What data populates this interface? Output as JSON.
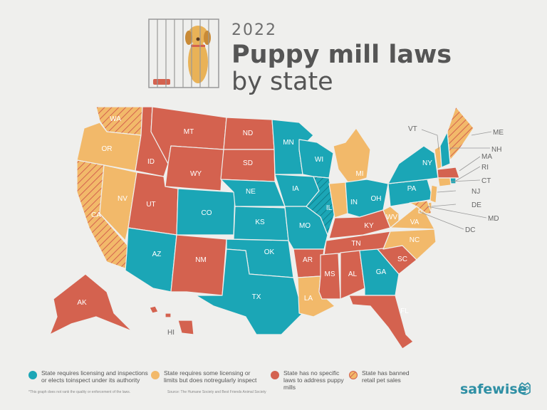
{
  "header": {
    "year": "2022",
    "title": "Puppy mill laws",
    "subtitle": "by state"
  },
  "colors": {
    "teal": "#1ba6b6",
    "orange": "#f2b96a",
    "red": "#d4624f",
    "background": "#efefed",
    "text": "#555555"
  },
  "states": {
    "WA": {
      "label": "WA",
      "category": "orange",
      "banned": true
    },
    "OR": {
      "label": "OR",
      "category": "orange",
      "banned": false
    },
    "CA": {
      "label": "CA",
      "category": "orange",
      "banned": true
    },
    "NV": {
      "label": "NV",
      "category": "orange",
      "banned": false
    },
    "ID": {
      "label": "ID",
      "category": "red",
      "banned": false
    },
    "MT": {
      "label": "MT",
      "category": "red",
      "banned": false
    },
    "WY": {
      "label": "WY",
      "category": "red",
      "banned": false
    },
    "UT": {
      "label": "UT",
      "category": "red",
      "banned": false
    },
    "AZ": {
      "label": "AZ",
      "category": "teal",
      "banned": false
    },
    "CO": {
      "label": "CO",
      "category": "teal",
      "banned": false
    },
    "NM": {
      "label": "NM",
      "category": "red",
      "banned": false
    },
    "ND": {
      "label": "ND",
      "category": "red",
      "banned": false
    },
    "SD": {
      "label": "SD",
      "category": "red",
      "banned": false
    },
    "NE": {
      "label": "NE",
      "category": "teal",
      "banned": false
    },
    "KS": {
      "label": "KS",
      "category": "teal",
      "banned": false
    },
    "OK": {
      "label": "OK",
      "category": "teal",
      "banned": false
    },
    "TX": {
      "label": "TX",
      "category": "teal",
      "banned": false
    },
    "MN": {
      "label": "MN",
      "category": "teal",
      "banned": false
    },
    "IA": {
      "label": "IA",
      "category": "teal",
      "banned": false
    },
    "MO": {
      "label": "MO",
      "category": "teal",
      "banned": false
    },
    "AR": {
      "label": "AR",
      "category": "red",
      "banned": false
    },
    "LA": {
      "label": "LA",
      "category": "orange",
      "banned": false
    },
    "WI": {
      "label": "WI",
      "category": "teal",
      "banned": false
    },
    "IL": {
      "label": "IL",
      "category": "teal",
      "banned": true
    },
    "MI": {
      "label": "MI",
      "category": "orange",
      "banned": false
    },
    "IN": {
      "label": "IN",
      "category": "orange",
      "banned": false
    },
    "OH": {
      "label": "OH",
      "category": "teal",
      "banned": false
    },
    "KY": {
      "label": "KY",
      "category": "red",
      "banned": false
    },
    "TN": {
      "label": "TN",
      "category": "red",
      "banned": false
    },
    "MS": {
      "label": "MS",
      "category": "red",
      "banned": false
    },
    "AL": {
      "label": "AL",
      "category": "red",
      "banned": false
    },
    "GA": {
      "label": "GA",
      "category": "teal",
      "banned": false
    },
    "FL": {
      "label": "FL",
      "category": "red",
      "banned": false
    },
    "SC": {
      "label": "SC",
      "category": "red",
      "banned": false
    },
    "NC": {
      "label": "NC",
      "category": "orange",
      "banned": false
    },
    "VA": {
      "label": "VA",
      "category": "orange",
      "banned": false
    },
    "WV": {
      "label": "WV",
      "category": "orange",
      "banned": false
    },
    "PA": {
      "label": "PA",
      "category": "teal",
      "banned": false
    },
    "NY": {
      "label": "NY",
      "category": "teal",
      "banned": false
    },
    "VT": {
      "label": "VT",
      "category": "orange",
      "banned": false
    },
    "NH": {
      "label": "NH",
      "category": "teal",
      "banned": false
    },
    "ME": {
      "label": "ME",
      "category": "orange",
      "banned": true
    },
    "MA": {
      "label": "MA",
      "category": "red",
      "banned": false
    },
    "RI": {
      "label": "RI",
      "category": "teal",
      "banned": false
    },
    "CT": {
      "label": "CT",
      "category": "orange",
      "banned": false
    },
    "NJ": {
      "label": "NJ",
      "category": "orange",
      "banned": false
    },
    "DE": {
      "label": "DE",
      "category": "orange",
      "banned": false
    },
    "MD": {
      "label": "MD",
      "category": "orange",
      "banned": true
    },
    "DC": {
      "label": "DC",
      "category": "orange",
      "banned": false
    },
    "AK": {
      "label": "AK",
      "category": "red",
      "banned": false
    },
    "HI": {
      "label": "HI",
      "category": "red",
      "banned": false
    }
  },
  "legend": {
    "teal": "State requires licensing and inspections or elects toinspect under its authority",
    "orange": "State requires some licensing or limits but does notregularly inspect",
    "red": "State has no specific laws to address puppy mills",
    "banned": "State has banned retail pet sales"
  },
  "footer": {
    "note": "*This graph does not rank the quality or enforcement of the laws.",
    "source": "Source: The Humane Society and Best Friends Animal Society",
    "brand": "safewise"
  }
}
